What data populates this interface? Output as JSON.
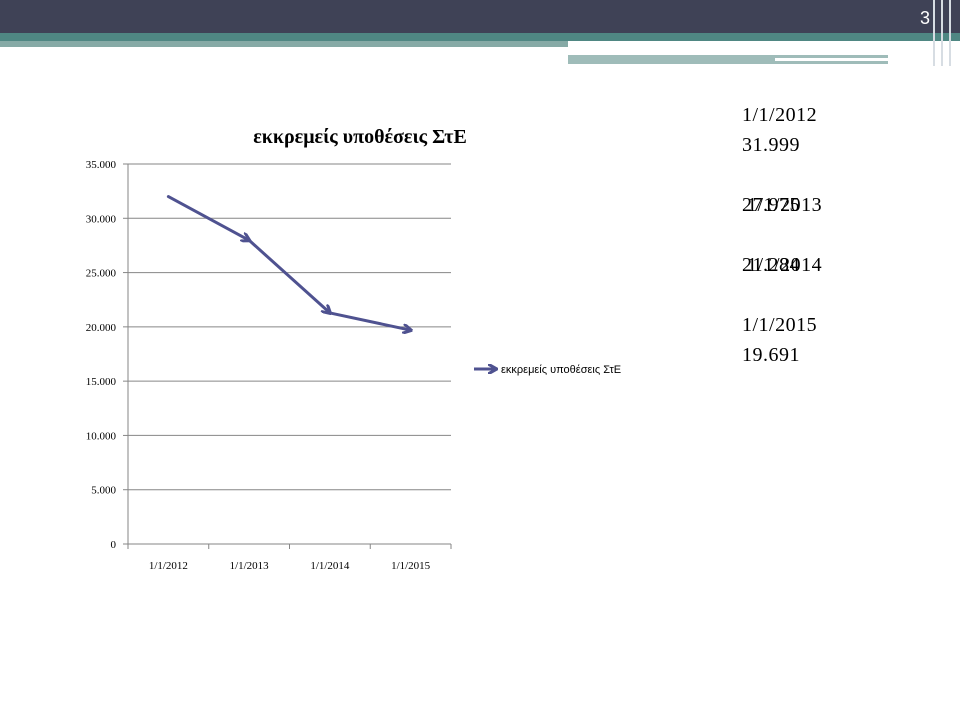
{
  "slide": {
    "number": "3"
  },
  "chart_data": {
    "type": "line",
    "title": "εκκρεμείς υποθέσεις ΣτΕ",
    "categories": [
      "1/1/2012",
      "1/1/2013",
      "1/1/2014",
      "1/1/2015"
    ],
    "series": [
      {
        "name": "εκκρεμείς υποθέσεις ΣτΕ",
        "values": [
          31999,
          27975,
          21284,
          19691
        ]
      }
    ],
    "yticks": [
      "0",
      "5.000",
      "10.000",
      "15.000",
      "20.000",
      "25.000",
      "30.000",
      "35.000"
    ],
    "ylim": [
      0,
      35000
    ],
    "grid": true,
    "legend": "right",
    "line_color": "#4f5290",
    "xlabel": "",
    "ylabel": ""
  },
  "side_values": [
    {
      "date": "1/1/2012",
      "value": "31.999"
    },
    {
      "date": "1/1/2013",
      "value": "27.975"
    },
    {
      "date": "1/1/2014",
      "value": "21.284"
    },
    {
      "date": "1/1/2015",
      "value": "19.691"
    }
  ]
}
